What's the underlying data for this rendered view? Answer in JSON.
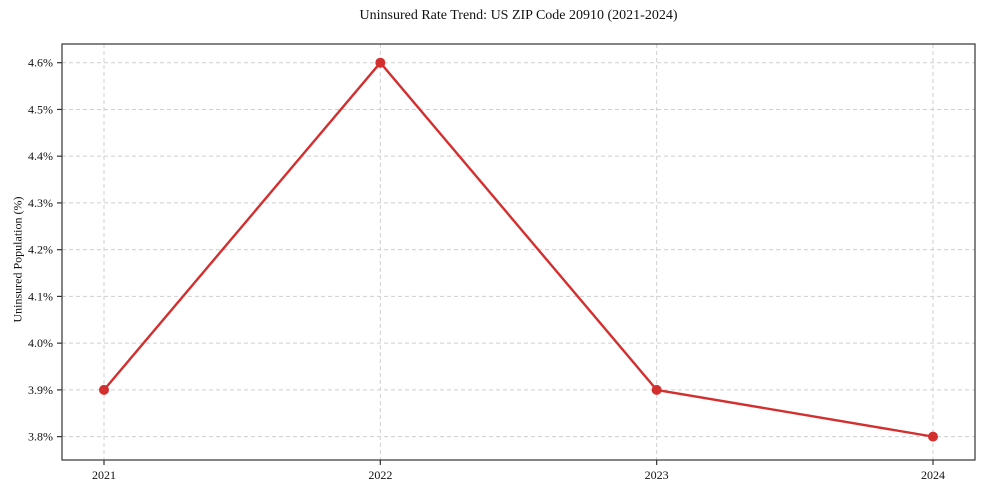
{
  "chart_data": {
    "type": "line",
    "title": "Uninsured Rate Trend: US ZIP Code 20910 (2021-2024)",
    "xlabel": "",
    "ylabel": "Uninsured Population (%)",
    "categories": [
      "2021",
      "2022",
      "2023",
      "2024"
    ],
    "series": [
      {
        "name": "Uninsured Population (%)",
        "values": [
          3.9,
          4.6,
          3.9,
          3.8
        ]
      }
    ],
    "y_ticks": [
      "3.8%",
      "3.9%",
      "4.0%",
      "4.1%",
      "4.2%",
      "4.3%",
      "4.4%",
      "4.5%",
      "4.6%"
    ],
    "y_tick_values": [
      3.8,
      3.9,
      4.0,
      4.1,
      4.2,
      4.3,
      4.4,
      4.5,
      4.6
    ],
    "ylim": [
      3.75,
      4.64
    ],
    "grid": true,
    "legend": "none",
    "line_color": "#d32f2f",
    "grid_color": "#cfcfcf",
    "spine_color": "#333333",
    "background": "#ffffff"
  }
}
